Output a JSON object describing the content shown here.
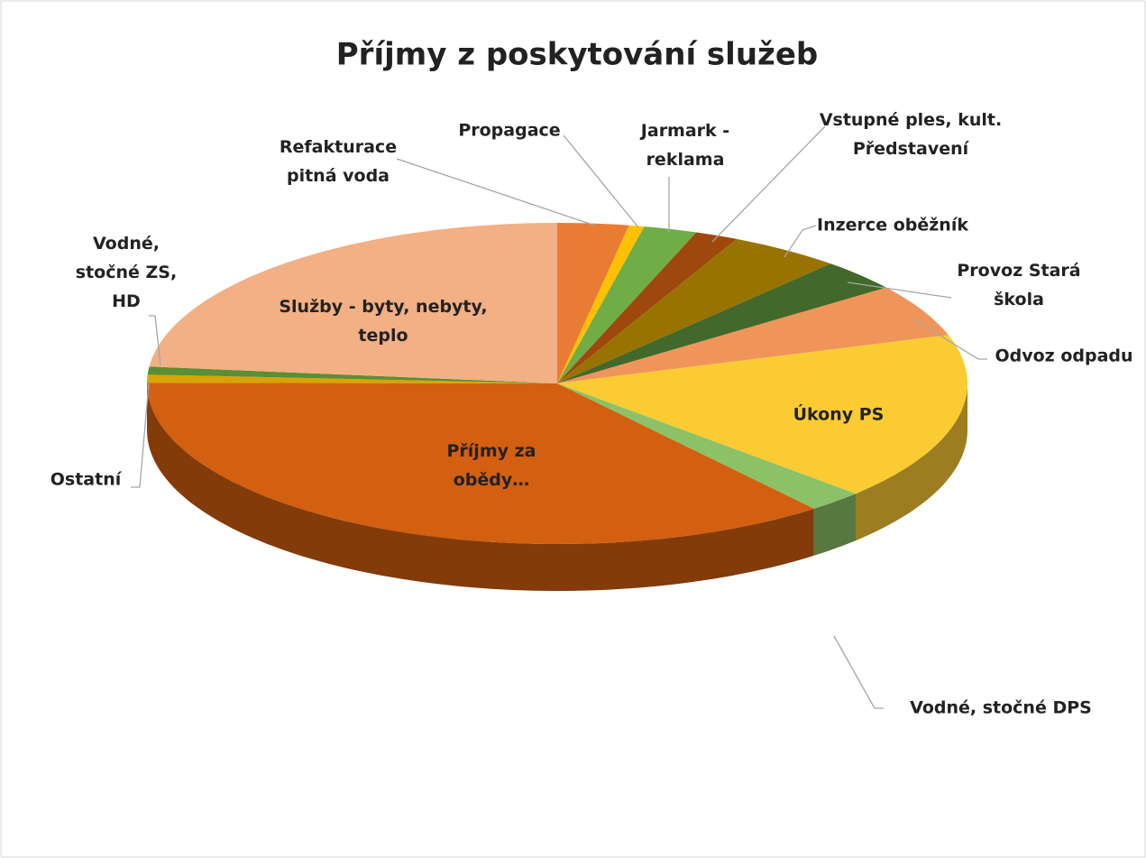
{
  "chart_data": {
    "type": "pie3d",
    "title": "Příjmy z poskytování služeb",
    "categories": [
      "Refakturace pitná voda",
      "Propagace",
      "Jarmark - reklama",
      "Vstupné ples, kult. Představení",
      "Inzerce oběžník",
      "Provoz Stará škola",
      "Odvoz odpadu",
      "Úkony PS",
      "Vodné, stočné DPS",
      "Příjmy za obědy…",
      "Ostatní",
      "Vodné, stočné ZS, HD",
      "Služby - byty, nebyty, teplo"
    ],
    "values": [
      2.8,
      0.6,
      2.1,
      1.7,
      4.4,
      3.2,
      5.3,
      16.9,
      2.2,
      35.8,
      0.8,
      0.8,
      23.3
    ],
    "colors": [
      "#e97b32",
      "#ffc000",
      "#70ad47",
      "#9e480e",
      "#997300",
      "#43682b",
      "#f0955a",
      "#fbcb33",
      "#8cc168",
      "#d35f10",
      "#d9a400",
      "#5b8e35",
      "#f2b084"
    ]
  }
}
